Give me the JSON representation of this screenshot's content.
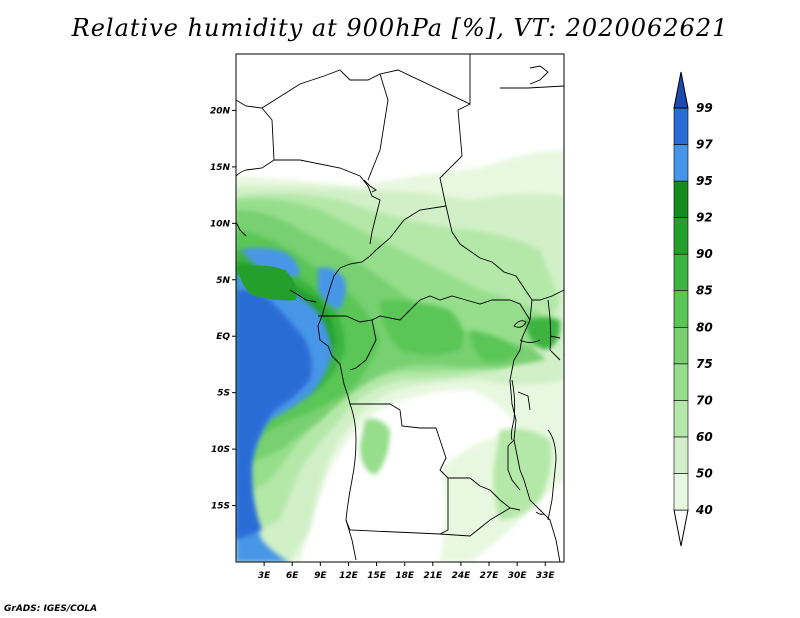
{
  "title": "Relative humidity at 900hPa [%], VT: 2020062621",
  "credit": "GrADS: IGES/COLA",
  "map": {
    "lon_range": [
      0,
      35
    ],
    "lat_range": [
      -20,
      25
    ],
    "lon_ticks": [
      {
        "value": 3,
        "label": "3E"
      },
      {
        "value": 6,
        "label": "6E"
      },
      {
        "value": 9,
        "label": "9E"
      },
      {
        "value": 12,
        "label": "12E"
      },
      {
        "value": 15,
        "label": "15E"
      },
      {
        "value": 18,
        "label": "18E"
      },
      {
        "value": 21,
        "label": "21E"
      },
      {
        "value": 24,
        "label": "24E"
      },
      {
        "value": 27,
        "label": "27E"
      },
      {
        "value": 30,
        "label": "30E"
      },
      {
        "value": 33,
        "label": "33E"
      }
    ],
    "lat_ticks": [
      {
        "value": 20,
        "label": "20N"
      },
      {
        "value": 15,
        "label": "15N"
      },
      {
        "value": 10,
        "label": "10N"
      },
      {
        "value": 5,
        "label": "5N"
      },
      {
        "value": 0,
        "label": "EQ"
      },
      {
        "value": -5,
        "label": "5S"
      },
      {
        "value": -10,
        "label": "10S"
      },
      {
        "value": -15,
        "label": "15S"
      }
    ]
  },
  "colorbar": {
    "levels": [
      "40",
      "50",
      "60",
      "70",
      "75",
      "80",
      "85",
      "90",
      "92",
      "95",
      "97",
      "99"
    ],
    "colors": [
      "#ffffff",
      "#e8f8e0",
      "#d2f0c8",
      "#b4e8a8",
      "#96de8c",
      "#78d070",
      "#5ac656",
      "#3cb440",
      "#24a02a",
      "#168c1e",
      "#4696e8",
      "#2a6cd6",
      "#1a4cb0"
    ]
  }
}
